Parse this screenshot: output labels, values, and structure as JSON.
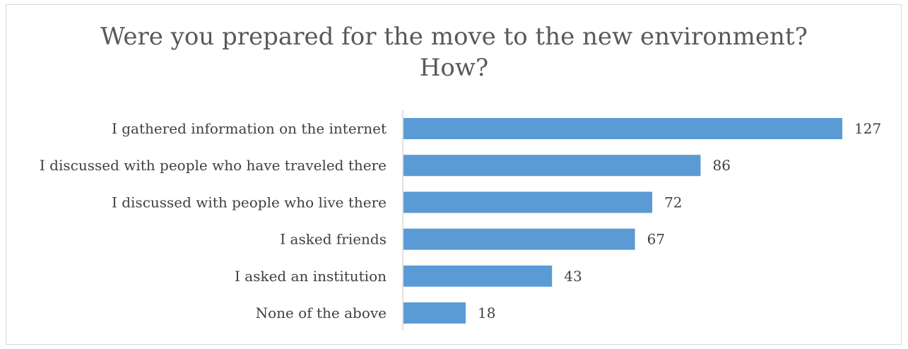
{
  "chart_data": {
    "type": "bar",
    "orientation": "horizontal",
    "title_lines": [
      "Were you prepared for the move to the new environment?",
      "How?"
    ],
    "categories": [
      "I gathered information on the internet",
      "I discussed with people who have traveled there",
      "I discussed with people who live there",
      "I asked friends",
      "I asked an institution",
      "None of the above"
    ],
    "values": [
      127,
      86,
      72,
      67,
      43,
      18
    ],
    "data_labels": [
      "127",
      "86",
      "72",
      "67",
      "43",
      "18"
    ],
    "bar_color": "#5b9bd5",
    "axis_color": "#d9d9d9",
    "grid": false,
    "legend": "none"
  }
}
